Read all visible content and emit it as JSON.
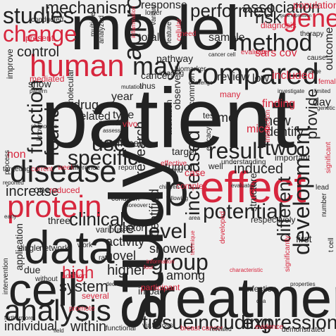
{
  "colors": {
    "black": "#222222",
    "red": "#d7263d",
    "background": "#efefef"
  },
  "words": [
    {
      "text": "patient",
      "color": "black"
    },
    {
      "text": "study",
      "color": "black"
    },
    {
      "text": "model",
      "color": "black"
    },
    {
      "text": "treatment",
      "color": "black"
    },
    {
      "text": "data",
      "color": "black"
    },
    {
      "text": "cell",
      "color": "black"
    },
    {
      "text": "effect",
      "color": "red"
    },
    {
      "text": "human",
      "color": "red"
    },
    {
      "text": "protein",
      "color": "red"
    },
    {
      "text": "disease",
      "color": "black"
    },
    {
      "text": "analysis",
      "color": "black"
    },
    {
      "text": "compared",
      "color": "black"
    },
    {
      "text": "result",
      "color": "black"
    },
    {
      "text": "tissueincluding",
      "color": "black"
    },
    {
      "text": "expression",
      "color": "black"
    },
    {
      "text": "group",
      "color": "black"
    },
    {
      "text": "level",
      "color": "black"
    },
    {
      "text": "approach",
      "color": "black"
    },
    {
      "text": "method",
      "color": "black"
    },
    {
      "text": "gene",
      "color": "red"
    },
    {
      "text": "development",
      "color": "black"
    },
    {
      "text": "potential",
      "color": "black"
    },
    {
      "text": "increased",
      "color": "black"
    },
    {
      "text": "different",
      "color": "black"
    },
    {
      "text": "function",
      "color": "black"
    },
    {
      "text": "studies",
      "color": "black"
    },
    {
      "text": "mechanism",
      "color": "black"
    },
    {
      "text": "change",
      "color": "red"
    },
    {
      "text": "found",
      "color": "black"
    },
    {
      "text": "may",
      "color": "black"
    },
    {
      "text": "specific",
      "color": "black"
    },
    {
      "text": "use",
      "color": "black"
    },
    {
      "text": "p",
      "color": "black"
    },
    {
      "text": "two",
      "color": "black"
    },
    {
      "text": "clinical",
      "color": "black"
    },
    {
      "text": "response",
      "color": "black"
    },
    {
      "text": "performed",
      "color": "black"
    },
    {
      "text": "association",
      "color": "black"
    },
    {
      "text": "population",
      "color": "red"
    },
    {
      "text": "risk",
      "color": "black"
    },
    {
      "text": "control",
      "color": "black"
    },
    {
      "text": "increase",
      "color": "black"
    },
    {
      "text": "high",
      "color": "red"
    },
    {
      "text": "role",
      "color": "black"
    },
    {
      "text": "higher",
      "color": "black"
    },
    {
      "text": "system",
      "color": "black"
    },
    {
      "text": "individual",
      "color": "black"
    },
    {
      "text": "within",
      "color": "black"
    },
    {
      "text": "activity",
      "color": "black"
    },
    {
      "text": "novel",
      "color": "black"
    },
    {
      "text": "showed",
      "color": "black"
    },
    {
      "text": "identified",
      "color": "black"
    },
    {
      "text": "among",
      "color": "black"
    },
    {
      "text": "induced",
      "color": "black"
    },
    {
      "text": "provide",
      "color": "black"
    },
    {
      "text": "new",
      "color": "black"
    },
    {
      "text": "identify",
      "color": "black"
    },
    {
      "text": "time",
      "color": "black"
    },
    {
      "text": "research",
      "color": "black"
    },
    {
      "text": "drug",
      "color": "black"
    },
    {
      "text": "related",
      "color": "black"
    },
    {
      "text": "type",
      "color": "black"
    },
    {
      "text": "year",
      "color": "black"
    },
    {
      "text": "review",
      "color": "black"
    },
    {
      "text": "pathway",
      "color": "black"
    },
    {
      "text": "cancer",
      "color": "black"
    },
    {
      "text": "sars cov",
      "color": "red"
    },
    {
      "text": "included",
      "color": "red"
    },
    {
      "text": "low",
      "color": "black"
    },
    {
      "text": "finding",
      "color": "red"
    },
    {
      "text": "mice",
      "color": "red"
    },
    {
      "text": "day",
      "color": "black"
    },
    {
      "text": "outcome",
      "color": "black"
    },
    {
      "text": "diagnosis",
      "color": "red"
    },
    {
      "text": "evaluate",
      "color": "red"
    },
    {
      "text": "structure",
      "color": "black"
    },
    {
      "text": "respectively",
      "color": "black"
    },
    {
      "text": "infection",
      "color": "black"
    },
    {
      "text": "impact",
      "color": "black"
    },
    {
      "text": "factor",
      "color": "black"
    },
    {
      "text": "various",
      "color": "black"
    },
    {
      "text": "three",
      "color": "black"
    },
    {
      "text": "one",
      "color": "black"
    },
    {
      "text": "application",
      "color": "black"
    },
    {
      "text": "due",
      "color": "black"
    },
    {
      "text": "first",
      "color": "black"
    },
    {
      "text": "important",
      "color": "black"
    },
    {
      "text": "target",
      "color": "black"
    },
    {
      "text": "tumor",
      "color": "black"
    },
    {
      "text": "stem cell",
      "color": "black"
    },
    {
      "text": "observed",
      "color": "black"
    },
    {
      "text": "common",
      "color": "black"
    },
    {
      "text": "activation",
      "color": "black"
    },
    {
      "text": "molecular",
      "color": "black"
    },
    {
      "text": "show",
      "color": "black"
    },
    {
      "text": "overall",
      "color": "black"
    },
    {
      "text": "total",
      "color": "black"
    },
    {
      "text": "sample",
      "color": "black"
    },
    {
      "text": "lower",
      "color": "black"
    },
    {
      "text": "conducted",
      "color": "black"
    },
    {
      "text": "improve",
      "color": "black"
    },
    {
      "text": "present",
      "color": "red"
    },
    {
      "text": "non",
      "color": "red"
    },
    {
      "text": "mediated",
      "color": "red"
    },
    {
      "text": "reduced",
      "color": "red"
    },
    {
      "text": "vivo",
      "color": "red"
    },
    {
      "text": "case",
      "color": "red"
    },
    {
      "text": "many",
      "color": "red"
    },
    {
      "text": "participant",
      "color": "red"
    },
    {
      "text": "several",
      "color": "red"
    },
    {
      "text": "developed",
      "color": "red"
    },
    {
      "text": "significantly",
      "color": "red"
    },
    {
      "text": "complex",
      "color": "red"
    },
    {
      "text": "cellular",
      "color": "red"
    },
    {
      "text": "need",
      "color": "red"
    },
    {
      "text": "interaction",
      "color": "red"
    },
    {
      "text": "effective",
      "color": "red"
    },
    {
      "text": "breast cancer",
      "color": "red"
    },
    {
      "text": "evidence",
      "color": "red"
    },
    {
      "text": "female",
      "color": "red"
    },
    {
      "text": "significant",
      "color": "red"
    },
    {
      "text": "current",
      "color": "red"
    },
    {
      "text": "week",
      "color": "red"
    },
    {
      "text": "addition",
      "color": "red"
    },
    {
      "text": "promote",
      "color": "red"
    },
    {
      "text": "inflammation",
      "color": "red"
    },
    {
      "text": "information",
      "color": "red"
    },
    {
      "text": "characteristic",
      "color": "red"
    },
    {
      "text": "technique",
      "color": "red"
    },
    {
      "text": "four",
      "color": "red"
    },
    {
      "text": "multiple",
      "color": "black"
    },
    {
      "text": "analyzed",
      "color": "black"
    },
    {
      "text": "variant",
      "color": "black"
    },
    {
      "text": "imaging",
      "color": "black"
    },
    {
      "text": "biomarker",
      "color": "black"
    },
    {
      "text": "feature",
      "color": "black"
    },
    {
      "text": "therapy",
      "color": "black"
    },
    {
      "text": "cause",
      "color": "black"
    },
    {
      "text": "test",
      "color": "black"
    },
    {
      "text": "well",
      "color": "black"
    },
    {
      "text": "report",
      "color": "black"
    },
    {
      "text": "difference",
      "color": "black"
    },
    {
      "text": "known",
      "color": "black"
    },
    {
      "text": "process",
      "color": "black"
    },
    {
      "text": "targeting",
      "color": "black"
    },
    {
      "text": "reported",
      "color": "black"
    },
    {
      "text": "covid",
      "color": "black"
    },
    {
      "text": "efficacy",
      "color": "black"
    },
    {
      "text": "understanding",
      "color": "black"
    },
    {
      "text": "condition",
      "color": "black"
    },
    {
      "text": "children",
      "color": "black"
    },
    {
      "text": "following",
      "color": "black"
    },
    {
      "text": "thus",
      "color": "black"
    },
    {
      "text": "phenotype",
      "color": "black"
    },
    {
      "text": "pattern",
      "color": "black"
    },
    {
      "text": "assessed",
      "color": "black"
    },
    {
      "text": "network",
      "color": "black"
    },
    {
      "text": "single",
      "color": "black"
    },
    {
      "text": "work",
      "color": "black"
    },
    {
      "text": "intervention",
      "color": "black"
    },
    {
      "text": "without",
      "color": "black"
    },
    {
      "text": "rate",
      "color": "black"
    },
    {
      "text": "decreased",
      "color": "black"
    },
    {
      "text": "furthermore",
      "color": "black"
    },
    {
      "text": "field",
      "color": "black"
    },
    {
      "text": "functional",
      "color": "black"
    },
    {
      "text": "via",
      "color": "black"
    },
    {
      "text": "across",
      "color": "black"
    },
    {
      "text": "revealed",
      "color": "black"
    },
    {
      "text": "demonstrated",
      "color": "black"
    },
    {
      "text": "properties",
      "color": "black"
    },
    {
      "text": "dna",
      "color": "black"
    },
    {
      "text": "t cell",
      "color": "black"
    },
    {
      "text": "number",
      "color": "black"
    },
    {
      "text": "limited",
      "color": "black"
    },
    {
      "text": "genetic",
      "color": "black"
    },
    {
      "text": "investigate",
      "color": "black"
    },
    {
      "text": "large",
      "color": "black"
    },
    {
      "text": "gene expression",
      "color": "black"
    },
    {
      "text": "cancer cell",
      "color": "black"
    },
    {
      "text": "challenge",
      "color": "black"
    },
    {
      "text": "mutation",
      "color": "black"
    },
    {
      "text": "evaluated",
      "color": "black"
    },
    {
      "text": "area",
      "color": "black"
    },
    {
      "text": "moreover",
      "color": "black"
    },
    {
      "text": "early",
      "color": "black"
    },
    {
      "text": "lead",
      "color": "black"
    }
  ]
}
